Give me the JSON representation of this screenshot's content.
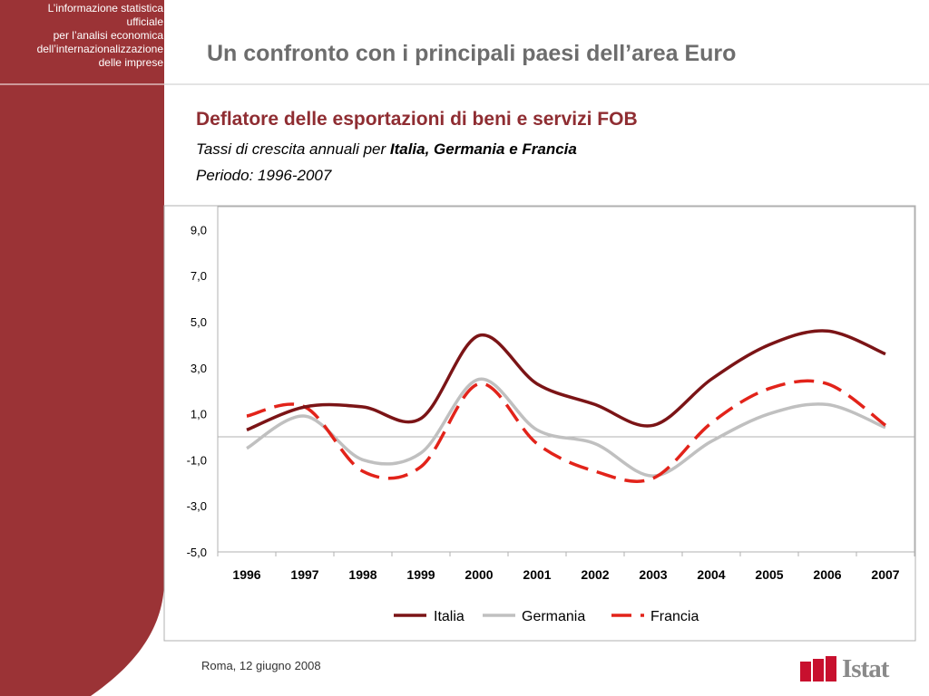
{
  "sidebar": {
    "lines": [
      "L’informazione statistica",
      "ufficiale",
      "per l’analisi economica",
      "dell’internazionalizzazione",
      "delle imprese"
    ]
  },
  "header": {
    "title": "Un confronto con i principali paesi dell’area Euro"
  },
  "chart": {
    "title": "Deflatore delle esportazioni di beni e servizi FOB",
    "subtitle_prefix": "Tassi di crescita annuali per ",
    "subtitle_bold": "Italia, Germania e Francia",
    "period": "Periodo: 1996-2007"
  },
  "footer": {
    "date": "Roma, 12 giugno 2008",
    "logo": "Istat"
  },
  "colors": {
    "brand": "#9b3336",
    "italia": "#7b1416",
    "germania": "#c0c0c0",
    "francia": "#e2231a"
  },
  "chart_data": {
    "type": "line",
    "title": "Deflatore delle esportazioni di beni e servizi FOB",
    "x": [
      "1996",
      "1997",
      "1998",
      "1999",
      "2000",
      "2001",
      "2002",
      "2003",
      "2004",
      "2005",
      "2006",
      "2007"
    ],
    "y_ticks": [
      "9,0",
      "7,0",
      "5,0",
      "3,0",
      "1,0",
      "-1,0",
      "-3,0",
      "-5,0"
    ],
    "ylim": [
      -5,
      10
    ],
    "grid": false,
    "legend": "bottom",
    "series": [
      {
        "name": "Italia",
        "values": [
          0.3,
          1.3,
          1.3,
          0.8,
          4.4,
          2.3,
          1.4,
          0.5,
          2.5,
          4.0,
          4.6,
          3.6
        ],
        "style": "solid",
        "color": "#7b1416"
      },
      {
        "name": "Germania",
        "values": [
          -0.5,
          0.9,
          -1.0,
          -0.7,
          2.5,
          0.3,
          -0.3,
          -1.7,
          -0.2,
          1.0,
          1.4,
          0.4
        ],
        "style": "solid",
        "color": "#c0c0c0"
      },
      {
        "name": "Francia",
        "values": [
          0.9,
          1.3,
          -1.5,
          -1.3,
          2.3,
          -0.3,
          -1.5,
          -1.8,
          0.6,
          2.1,
          2.3,
          0.5
        ],
        "style": "dashed",
        "color": "#e2231a"
      }
    ]
  }
}
